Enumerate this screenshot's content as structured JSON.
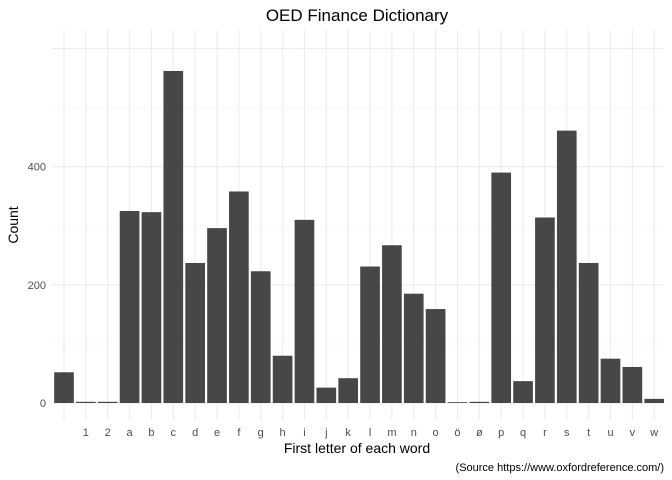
{
  "chart_data": {
    "type": "bar",
    "title": "OED Finance Dictionary",
    "xlabel": "First letter of each word",
    "ylabel": "Count",
    "caption": "(Source https://www.oxfordreference.com/)",
    "categories": [
      "",
      "1",
      "2",
      "a",
      "b",
      "c",
      "d",
      "e",
      "f",
      "g",
      "h",
      "i",
      "j",
      "k",
      "l",
      "m",
      "n",
      "o",
      "ö",
      "ø",
      "p",
      "q",
      "r",
      "s",
      "t",
      "u",
      "v",
      "w"
    ],
    "values": [
      52,
      2,
      2,
      325,
      323,
      562,
      237,
      296,
      358,
      223,
      80,
      310,
      26,
      42,
      231,
      267,
      185,
      159,
      1,
      2,
      390,
      37,
      314,
      461,
      237,
      75,
      61,
      7
    ],
    "ylim": [
      0,
      600
    ],
    "yticks": [
      0,
      200,
      400
    ],
    "grid": true,
    "bar_color": "#474747"
  }
}
